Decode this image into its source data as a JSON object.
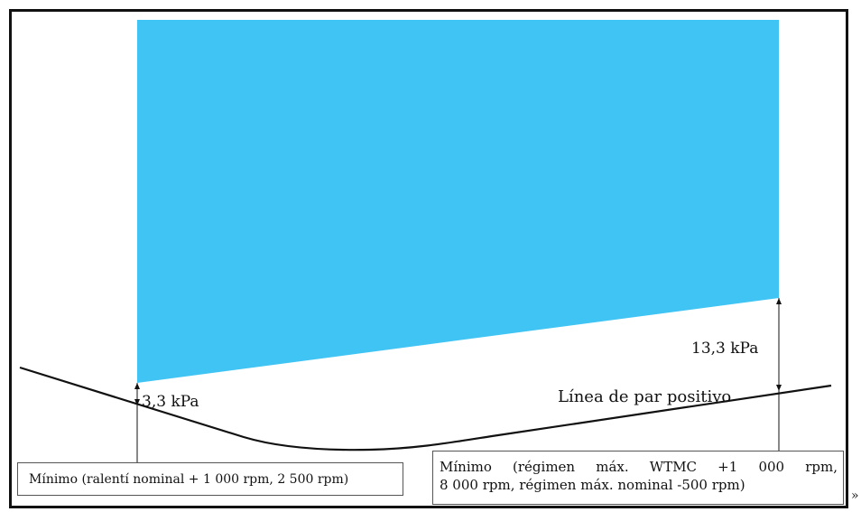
{
  "labels": {
    "left_pressure": "3,3 kPa",
    "right_pressure": "13,3 kPa",
    "curve_label": "Línea de par positivo"
  },
  "boxes": {
    "left": "Mínimo (ralentí nominal + 1 000 rpm, 2 500 rpm)",
    "right_line1": "Mínimo (régimen máx. WTMC +1 000 rpm,",
    "right_line2": "8 000 rpm, régimen máx. nominal -500 rpm)"
  },
  "closing_mark": "»",
  "colors": {
    "region_fill": "#40C4F4",
    "line": "#111111",
    "frame": "#111111"
  }
}
